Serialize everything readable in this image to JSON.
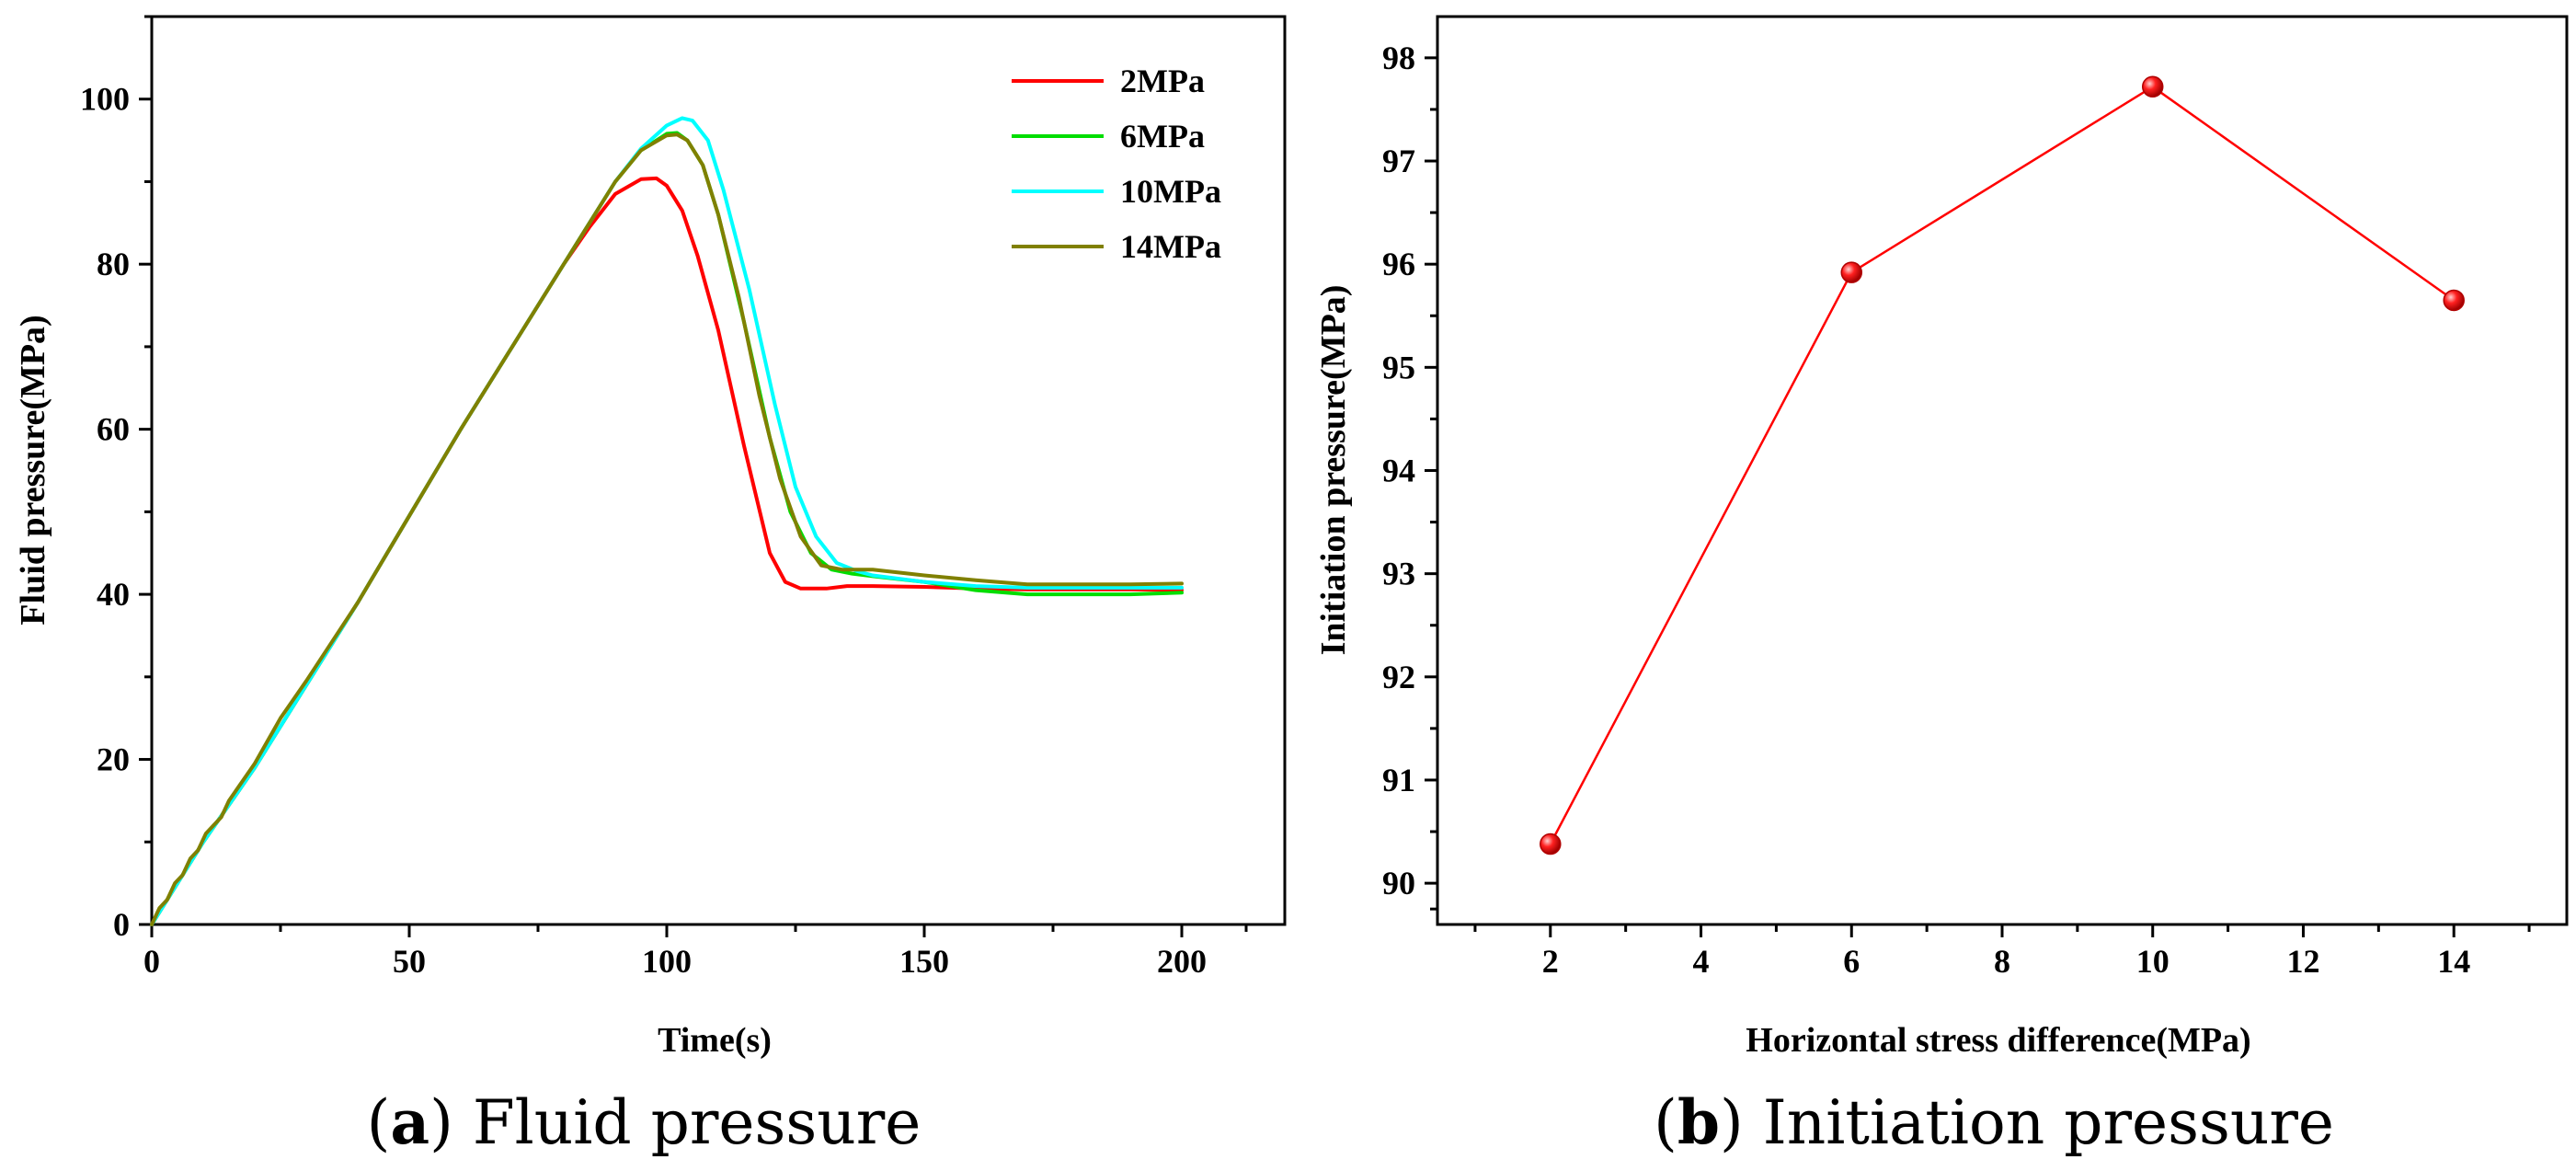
{
  "chart_data": [
    {
      "type": "line",
      "caption": {
        "letter": "a",
        "text": "Fluid pressure"
      },
      "xlabel": "Time(s)",
      "ylabel": "Fluid pressure(MPa)",
      "xlim": [
        0,
        220
      ],
      "ylim": [
        0,
        110
      ],
      "xticks": [
        0,
        50,
        100,
        150,
        200
      ],
      "yticks": [
        0,
        20,
        40,
        60,
        80,
        100
      ],
      "legend": "top-right",
      "series": [
        {
          "name": "2MPa",
          "color": "#ff0000",
          "x": [
            0,
            10,
            20,
            30,
            40,
            50,
            60,
            70,
            80,
            85,
            90,
            95,
            98,
            100,
            103,
            106,
            110,
            115,
            120,
            123,
            126,
            128,
            131,
            135,
            140,
            150,
            160,
            170,
            180,
            190,
            200
          ],
          "y": [
            0,
            10,
            19,
            29,
            39,
            49.5,
            60,
            70,
            80,
            84.5,
            88.5,
            90.3,
            90.4,
            89.5,
            86.5,
            81,
            72,
            58,
            45,
            41.5,
            40.7,
            40.7,
            40.7,
            41.0,
            41.0,
            40.9,
            40.7,
            40.6,
            40.6,
            40.6,
            40.5
          ]
        },
        {
          "name": "6MPa",
          "color": "#00dd00",
          "x": [
            0,
            10,
            20,
            30,
            40,
            50,
            60,
            70,
            80,
            85,
            90,
            95,
            100,
            102,
            104,
            107,
            110,
            115,
            120,
            124,
            128,
            132,
            136,
            140,
            150,
            160,
            170,
            180,
            190,
            200
          ],
          "y": [
            0,
            10,
            19,
            29,
            39,
            49.5,
            60,
            70,
            80,
            85,
            90,
            93.8,
            95.8,
            95.9,
            95,
            92,
            86,
            73,
            59,
            50,
            45,
            43,
            42.5,
            42.2,
            41.5,
            40.5,
            40.0,
            40.0,
            40.0,
            40.2
          ]
        },
        {
          "name": "10MPa",
          "color": "#00ffff",
          "x": [
            0,
            10,
            20,
            30,
            40,
            50,
            60,
            70,
            80,
            85,
            90,
            95,
            100,
            103,
            105,
            108,
            111,
            116,
            121,
            125,
            129,
            133,
            137,
            140,
            150,
            160,
            170,
            180,
            190,
            200
          ],
          "y": [
            0,
            10,
            19,
            29,
            39,
            49.5,
            60,
            70,
            80,
            85,
            90,
            94,
            96.8,
            97.7,
            97.4,
            95,
            89,
            77,
            63,
            53,
            47,
            43.8,
            42.8,
            42.3,
            41.5,
            41.0,
            40.8,
            40.8,
            40.8,
            40.8
          ]
        },
        {
          "name": "14MPa",
          "color": "#808000",
          "x": [
            0,
            1.5,
            3,
            4.5,
            6,
            7.5,
            9,
            10.5,
            12,
            13.5,
            15,
            20,
            25,
            30,
            40,
            50,
            60,
            70,
            80,
            85,
            90,
            95,
            100,
            102,
            104,
            107,
            110,
            114,
            118,
            122,
            126,
            130,
            134,
            140,
            150,
            160,
            170,
            180,
            190,
            200
          ],
          "y": [
            0,
            2,
            3,
            5,
            6,
            8,
            9,
            11,
            12,
            13,
            15,
            19.5,
            25,
            29.5,
            39,
            49.5,
            60,
            70,
            80,
            85,
            90,
            93.8,
            95.6,
            95.7,
            95,
            92,
            86,
            76,
            64,
            54,
            47,
            43.5,
            43,
            43,
            42.3,
            41.7,
            41.2,
            41.2,
            41.2,
            41.3
          ]
        }
      ]
    },
    {
      "type": "line",
      "caption": {
        "letter": "b",
        "text": "Initiation pressure"
      },
      "xlabel": "Horizontal stress difference(MPa)",
      "ylabel": "Initiation pressure(MPa)",
      "xlim": [
        0.5,
        15.5
      ],
      "ylim": [
        89.6,
        98.4
      ],
      "xticks": [
        2,
        4,
        6,
        8,
        10,
        12,
        14
      ],
      "yticks": [
        90,
        91,
        92,
        93,
        94,
        95,
        96,
        97,
        98
      ],
      "series": [
        {
          "color": "#ff0000",
          "x": [
            2,
            6,
            10,
            14
          ],
          "y": [
            90.38,
            95.92,
            97.72,
            95.65
          ]
        }
      ]
    }
  ]
}
